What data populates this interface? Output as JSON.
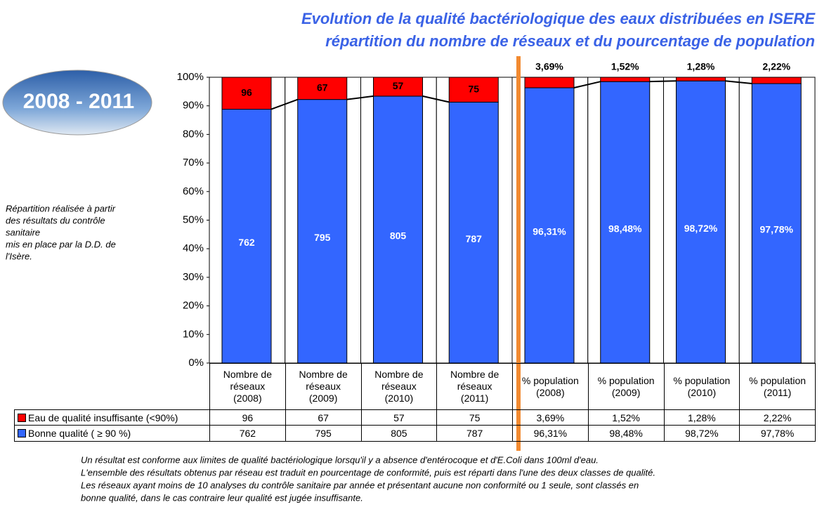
{
  "chart_data": {
    "type": "stacked-percent-bar",
    "title": "Evolution de la qualité bactériologique des eaux distribuées en ISERE",
    "subtitle": "répartition du nombre de réseaux et du pourcentage de population",
    "categories": [
      "Nombre de réseaux (2008)",
      "Nombre de réseaux (2009)",
      "Nombre de réseaux (2010)",
      "Nombre de réseaux (2011)",
      "% population (2008)",
      "% population (2009)",
      "% population (2010)",
      "% population (2011)"
    ],
    "series": [
      {
        "name": "Bonne qualité ( ≥ 90 %)",
        "color": "#3366ff",
        "values": [
          762,
          795,
          805,
          787,
          96.31,
          98.48,
          98.72,
          97.78
        ],
        "value_labels": [
          "762",
          "795",
          "805",
          "787",
          "96,31%",
          "98,48%",
          "98,72%",
          "97,78%"
        ]
      },
      {
        "name": "Eau de qualité insuffisante (<90%)",
        "color": "#ff0000",
        "values": [
          96,
          67,
          57,
          75,
          3.69,
          1.52,
          1.28,
          2.22
        ],
        "value_labels": [
          "96",
          "67",
          "57",
          "75",
          "3,69%",
          "1,52%",
          "1,28%",
          "2,22%"
        ]
      }
    ],
    "ylim": [
      0,
      100
    ],
    "yticks": [
      {
        "value": 0,
        "label": "0%"
      },
      {
        "value": 10,
        "label": "10%"
      },
      {
        "value": 20,
        "label": "20%"
      },
      {
        "value": 30,
        "label": "30%"
      },
      {
        "value": 40,
        "label": "40%"
      },
      {
        "value": 50,
        "label": "50%"
      },
      {
        "value": 60,
        "label": "60%"
      },
      {
        "value": 70,
        "label": "70%"
      },
      {
        "value": 80,
        "label": "80%"
      },
      {
        "value": 90,
        "label": "90%"
      },
      {
        "value": 100,
        "label": "100%"
      }
    ]
  },
  "badge": "2008 - 2011",
  "note": [
    "Répartition réalisée à partir",
    "des résultats du contrôle",
    "sanitaire",
    "mis en place par la D.D. de",
    "l'Isère."
  ],
  "footnote": [
    "Un résultat est conforme aux limites de qualité bactériologique lorsqu'il y a absence d'entérocoque et d'E.Coli dans 100ml d'eau.",
    "L'ensemble des résultats obtenus par réseau est traduit en pourcentage de conformité, puis est réparti dans l'une des deux classes de qualité.",
    "Les réseaux ayant moins de 10 analyses du contrôle sanitaire par année et présentant aucune non conformité ou 1 seule, sont classés en",
    "bonne qualité, dans le cas contraire leur qualité est jugée insuffisante."
  ]
}
